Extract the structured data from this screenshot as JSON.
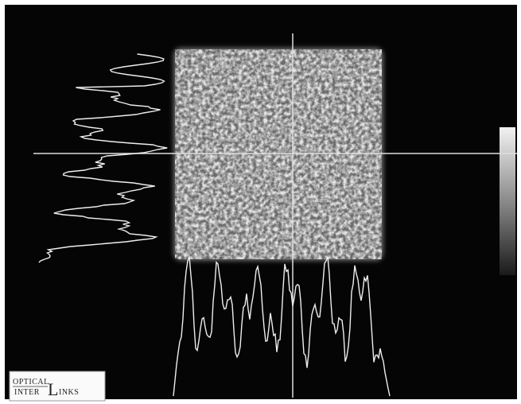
{
  "logo": {
    "top": "OPTICAL",
    "bottom": "INTER",
    "initial": "L",
    "rest": "INKS"
  }
}
